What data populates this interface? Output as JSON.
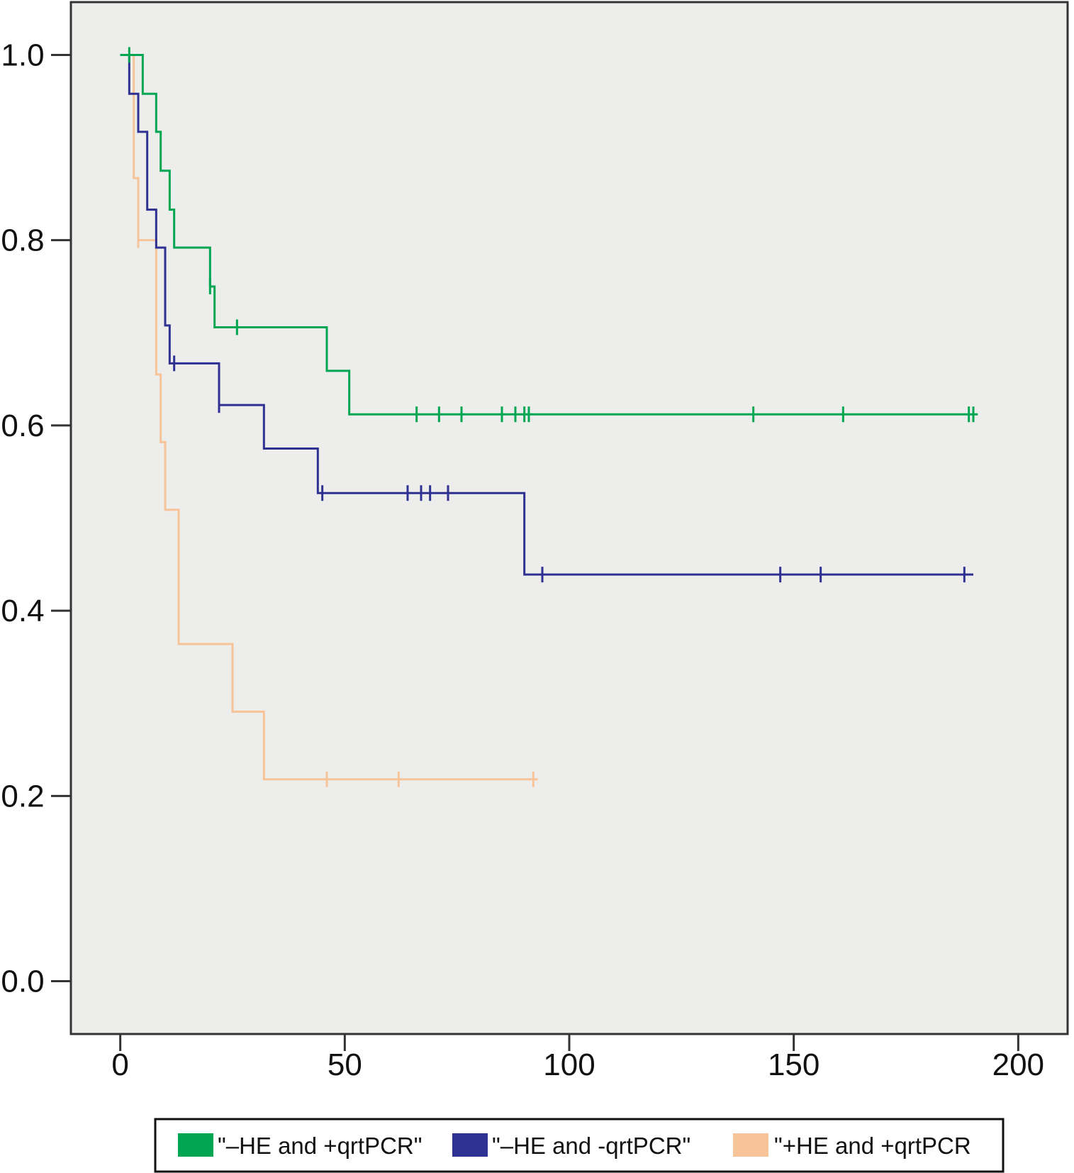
{
  "chart_data": {
    "type": "line",
    "step": true,
    "title": "",
    "xlabel": "",
    "ylabel": "",
    "xlim": [
      -11,
      211
    ],
    "ylim": [
      -0.057,
      1.057
    ],
    "xticks": [
      0,
      50,
      100,
      150,
      200
    ],
    "xtick_labels": [
      "0",
      "50",
      "100",
      "150",
      "200"
    ],
    "yticks": [
      0.0,
      0.2,
      0.4,
      0.6,
      0.8,
      1.0
    ],
    "ytick_labels": [
      "0.0",
      "0.2",
      "0.4",
      "0.6",
      "0.8",
      "1.0"
    ],
    "grid": false,
    "legend_position": "bottom",
    "plot_background": "#ededeb",
    "series": [
      {
        "name": "\"–HE and +qrtPCR\"",
        "color": "#00a651",
        "steps": [
          [
            0,
            1.0
          ],
          [
            5,
            0.958
          ],
          [
            8,
            0.917
          ],
          [
            9,
            0.875
          ],
          [
            11,
            0.833
          ],
          [
            12,
            0.792
          ],
          [
            20,
            0.75
          ],
          [
            21,
            0.706
          ],
          [
            46,
            0.659
          ],
          [
            51,
            0.612
          ],
          [
            191,
            0.612
          ]
        ],
        "censored": [
          [
            2,
            1.0
          ],
          [
            20,
            0.75
          ],
          [
            26,
            0.706
          ],
          [
            66,
            0.612
          ],
          [
            71,
            0.612
          ],
          [
            76,
            0.612
          ],
          [
            85,
            0.612
          ],
          [
            88,
            0.612
          ],
          [
            90,
            0.612
          ],
          [
            91,
            0.612
          ],
          [
            141,
            0.612
          ],
          [
            161,
            0.612
          ],
          [
            189,
            0.612
          ],
          [
            190,
            0.612
          ]
        ]
      },
      {
        "name": "\"–HE and -qrtPCR\"",
        "color": "#2e3192",
        "steps": [
          [
            0,
            1.0
          ],
          [
            2,
            0.958
          ],
          [
            4,
            0.917
          ],
          [
            6,
            0.833
          ],
          [
            8,
            0.792
          ],
          [
            10,
            0.708
          ],
          [
            11,
            0.667
          ],
          [
            22,
            0.622
          ],
          [
            32,
            0.575
          ],
          [
            44,
            0.527
          ],
          [
            90,
            0.439
          ],
          [
            190,
            0.439
          ]
        ],
        "censored": [
          [
            12,
            0.667
          ],
          [
            22,
            0.622
          ],
          [
            45,
            0.527
          ],
          [
            64,
            0.527
          ],
          [
            67,
            0.527
          ],
          [
            69,
            0.527
          ],
          [
            73,
            0.527
          ],
          [
            94,
            0.439
          ],
          [
            147,
            0.439
          ],
          [
            156,
            0.439
          ],
          [
            188,
            0.439
          ]
        ]
      },
      {
        "name": "\"+HE and +qrtPCR",
        "color": "#f7c49a",
        "steps": [
          [
            0,
            1.0
          ],
          [
            3,
            0.867
          ],
          [
            4,
            0.8
          ],
          [
            8,
            0.655
          ],
          [
            9,
            0.582
          ],
          [
            10,
            0.509
          ],
          [
            13,
            0.364
          ],
          [
            25,
            0.291
          ],
          [
            32,
            0.218
          ],
          [
            93,
            0.218
          ]
        ],
        "censored": [
          [
            4,
            0.8
          ],
          [
            46,
            0.218
          ],
          [
            62,
            0.218
          ],
          [
            92,
            0.218
          ]
        ]
      }
    ]
  }
}
